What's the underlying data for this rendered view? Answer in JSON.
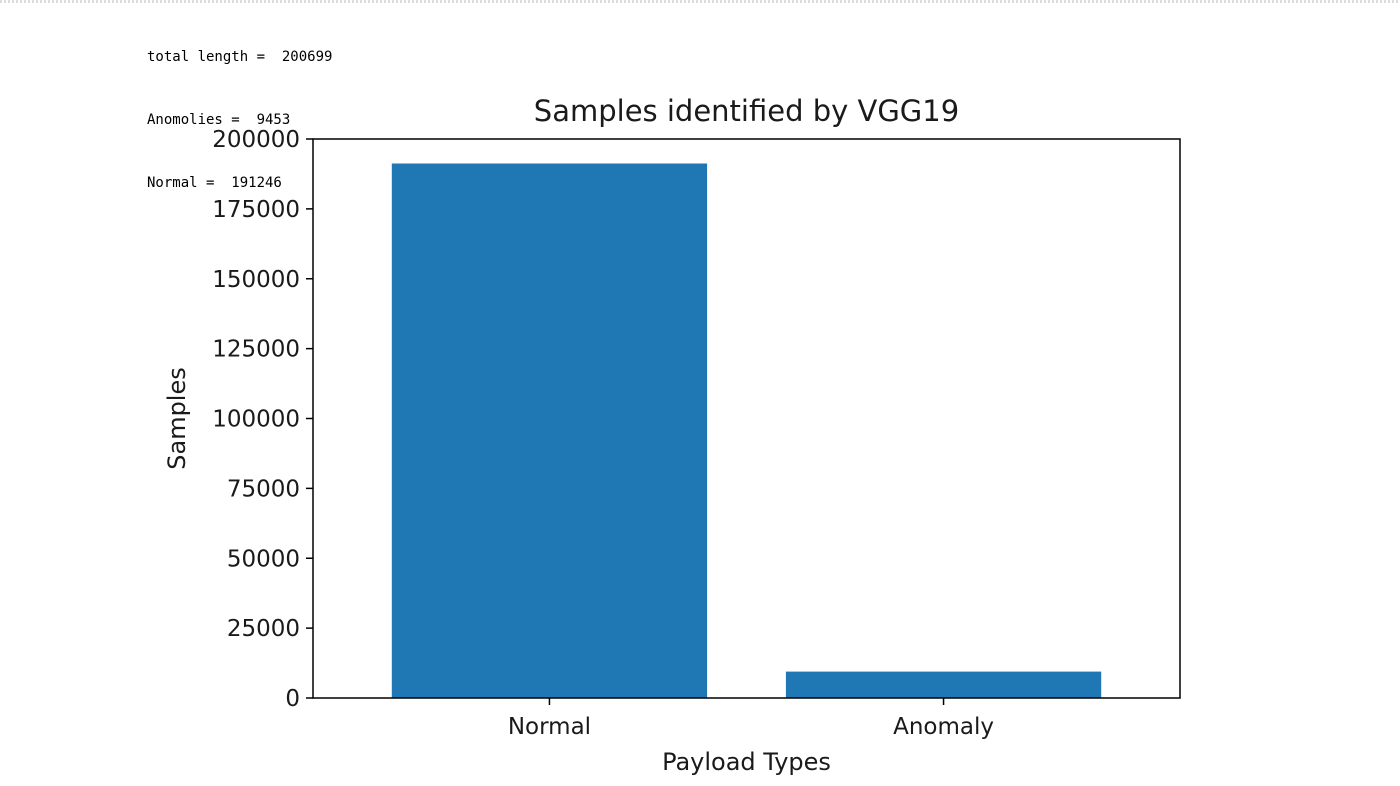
{
  "console": {
    "lines": [
      "total length =  200699",
      "Anomolies =  9453",
      "Normal =  191246"
    ]
  },
  "chart_data": {
    "type": "bar",
    "title": "Samples identified by VGG19",
    "xlabel": "Payload Types",
    "ylabel": "Samples",
    "categories": [
      "Normal",
      "Anomaly"
    ],
    "values": [
      191246,
      9453
    ],
    "ylim": [
      0,
      200000
    ],
    "yticks": [
      0,
      25000,
      50000,
      75000,
      100000,
      125000,
      150000,
      175000,
      200000
    ],
    "ytick_labels": [
      "0",
      "25000",
      "50000",
      "75000",
      "100000",
      "125000",
      "150000",
      "175000",
      "200000"
    ],
    "grid": false,
    "bar_color": "#1f77b4"
  }
}
